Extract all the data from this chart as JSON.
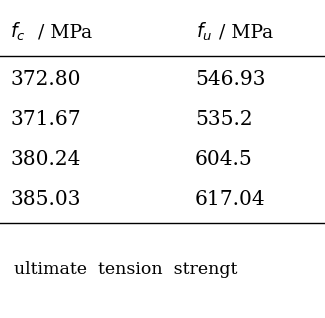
{
  "col1_header_italic": "f_c",
  "col1_header_rest": " / MPa",
  "col2_header_italic": "f_u",
  "col2_header_rest": "/ MPa",
  "col1_values": [
    "372.80",
    "371.67",
    "380.24",
    "385.03"
  ],
  "col2_values": [
    "546.93",
    "535.2",
    "604.5",
    "617.04"
  ],
  "footer_text": "ultimate  tension  strengt",
  "bg_color": "#ffffff",
  "line_color": "#000000",
  "text_color": "#000000",
  "font_size": 13.5,
  "footer_font_size": 12.5
}
